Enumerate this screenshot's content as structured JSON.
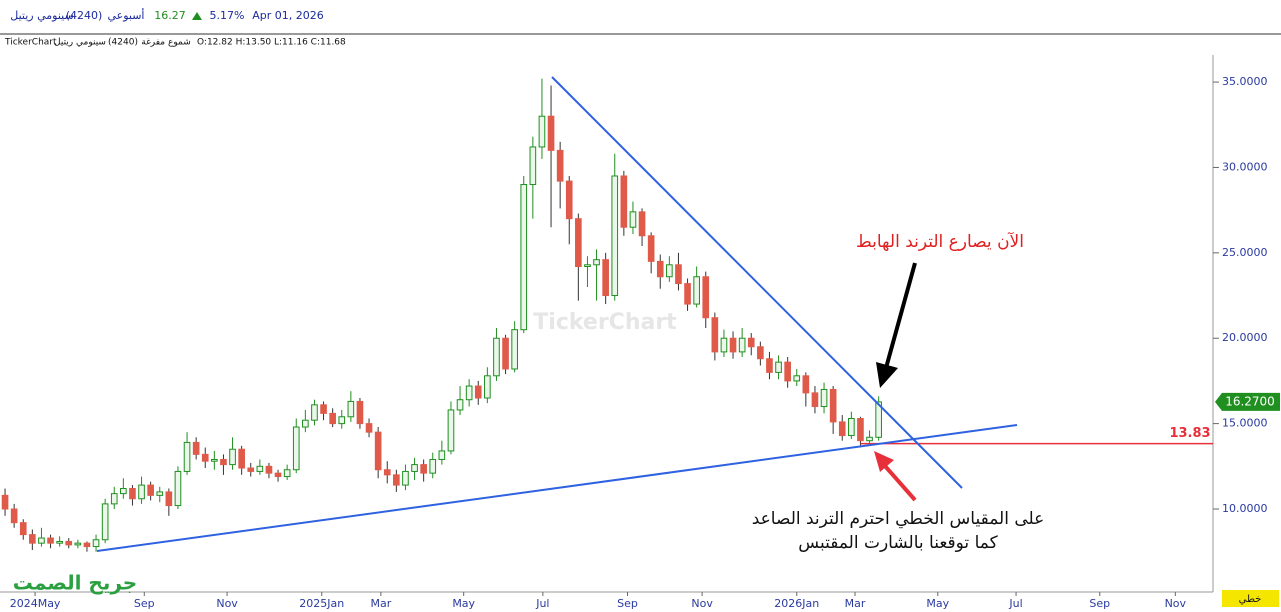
{
  "header": {
    "name": "سينومي ريتيل",
    "code": "(4240)",
    "period": "أسبوعي",
    "price": "16.27",
    "change": "5.17%",
    "date": "Apr 01, 2026",
    "source": "TickerChart",
    "style": "شموع مفرغة",
    "ohlc": "O:12.82  H:13.50  L:11.16  C:11.68"
  },
  "chart_data": {
    "type": "candlestick",
    "open": [
      10.8,
      10.0,
      9.2,
      8.5,
      8.0,
      8.3,
      8.0,
      8.1,
      7.9,
      8.0,
      7.8,
      8.2,
      10.3,
      10.9,
      11.2,
      10.6,
      11.4,
      10.8,
      11.0,
      10.2,
      12.2,
      13.9,
      13.2,
      12.8,
      12.9,
      12.6,
      13.5,
      12.4,
      12.2,
      12.5,
      12.1,
      11.9,
      12.3,
      14.8,
      15.2,
      16.1,
      15.6,
      15.0,
      15.4,
      16.3,
      15.0,
      14.5,
      12.3,
      12.0,
      11.4,
      12.2,
      12.6,
      12.1,
      12.9,
      13.4,
      15.8,
      16.4,
      17.2,
      16.5,
      17.8,
      20.0,
      18.2,
      20.5,
      29.0,
      31.2,
      33.0,
      31.0,
      29.2,
      27.0,
      24.2,
      24.3,
      24.6,
      22.5,
      29.5,
      26.5,
      27.4,
      26.0,
      24.5,
      23.6,
      24.3,
      23.2,
      22.0,
      23.6,
      21.2,
      19.2,
      20.0,
      19.2,
      20.0,
      19.5,
      18.8,
      18.0,
      18.6,
      17.5,
      17.8,
      16.8,
      16.0,
      17.0,
      15.1,
      14.3,
      15.3,
      14.0,
      14.2
    ],
    "high": [
      11.2,
      10.3,
      9.4,
      8.8,
      8.9,
      8.5,
      8.4,
      8.3,
      8.2,
      8.1,
      8.5,
      10.6,
      11.3,
      11.8,
      11.4,
      11.9,
      11.6,
      11.3,
      11.2,
      12.5,
      14.5,
      14.2,
      13.6,
      13.4,
      13.2,
      14.2,
      13.7,
      12.7,
      12.9,
      12.7,
      12.3,
      12.6,
      15.3,
      15.8,
      16.4,
      16.3,
      15.9,
      15.8,
      16.9,
      16.5,
      15.3,
      14.8,
      12.8,
      12.3,
      12.6,
      13.0,
      12.9,
      13.3,
      14.0,
      16.3,
      17.2,
      17.6,
      17.5,
      18.3,
      20.6,
      20.2,
      21.0,
      29.5,
      31.8,
      35.2,
      34.8,
      31.5,
      29.5,
      27.3,
      24.8,
      25.2,
      25.0,
      30.8,
      29.8,
      28.0,
      27.6,
      26.2,
      24.9,
      24.8,
      25.0,
      23.5,
      24.2,
      23.9,
      21.5,
      20.5,
      20.4,
      20.6,
      20.3,
      19.8,
      19.2,
      19.0,
      18.9,
      18.2,
      18.0,
      17.2,
      17.4,
      17.2,
      15.5,
      15.7,
      15.4,
      14.6,
      16.6
    ],
    "low": [
      9.6,
      8.9,
      8.2,
      7.6,
      7.8,
      7.7,
      7.8,
      7.7,
      7.7,
      7.5,
      7.5,
      8.0,
      10.0,
      10.6,
      10.2,
      10.3,
      10.5,
      10.4,
      9.6,
      10.0,
      12.0,
      12.9,
      12.4,
      12.3,
      12.0,
      12.3,
      12.0,
      11.9,
      12.0,
      11.8,
      11.6,
      11.7,
      12.1,
      14.5,
      14.9,
      15.2,
      14.8,
      14.7,
      15.1,
      14.7,
      14.2,
      11.8,
      11.5,
      11.0,
      11.1,
      11.7,
      11.6,
      11.8,
      12.6,
      13.2,
      15.5,
      16.0,
      16.1,
      16.2,
      17.5,
      17.9,
      18.0,
      20.3,
      27.0,
      30.5,
      26.5,
      27.6,
      25.5,
      22.2,
      23.0,
      22.2,
      22.0,
      22.2,
      26.0,
      26.1,
      25.4,
      23.8,
      22.9,
      23.3,
      22.8,
      21.6,
      21.8,
      20.6,
      18.7,
      18.9,
      18.8,
      18.9,
      19.0,
      18.4,
      17.6,
      17.6,
      17.1,
      17.2,
      16.0,
      15.6,
      15.6,
      14.4,
      14.0,
      14.1,
      13.6,
      13.8,
      14.0
    ],
    "close": [
      10.0,
      9.2,
      8.5,
      8.0,
      8.3,
      8.0,
      8.1,
      7.9,
      8.0,
      7.8,
      8.2,
      10.3,
      10.9,
      11.2,
      10.6,
      11.4,
      10.8,
      11.0,
      10.2,
      12.2,
      13.9,
      13.2,
      12.8,
      12.9,
      12.6,
      13.5,
      12.4,
      12.2,
      12.5,
      12.1,
      11.9,
      12.3,
      14.8,
      15.2,
      16.1,
      15.6,
      15.0,
      15.4,
      16.3,
      15.0,
      14.5,
      12.3,
      12.0,
      11.4,
      12.2,
      12.6,
      12.1,
      12.9,
      13.4,
      15.8,
      16.4,
      17.2,
      16.5,
      17.8,
      20.0,
      18.2,
      20.5,
      29.0,
      31.2,
      33.0,
      31.0,
      29.2,
      27.0,
      24.2,
      24.3,
      24.6,
      22.5,
      29.5,
      26.5,
      27.4,
      26.0,
      24.5,
      23.6,
      24.3,
      23.2,
      22.0,
      23.6,
      21.2,
      19.2,
      20.0,
      19.2,
      20.0,
      19.5,
      18.8,
      18.0,
      18.6,
      17.5,
      17.8,
      16.8,
      16.0,
      17.0,
      15.1,
      14.3,
      15.3,
      14.0,
      14.2,
      16.27
    ],
    "up_color": "#1f8f1f",
    "down_color": "#e05a4a",
    "xlim": [
      -0.5,
      132.5
    ],
    "xticks": [
      {
        "value": 3.3,
        "label": "2024May"
      },
      {
        "value": 15.3,
        "label": "Sep"
      },
      {
        "value": 24.4,
        "label": "Nov"
      },
      {
        "value": 34.8,
        "label": "2025Jan"
      },
      {
        "value": 41.3,
        "label": "Mar"
      },
      {
        "value": 50.4,
        "label": "May"
      },
      {
        "value": 59.1,
        "label": "Jul"
      },
      {
        "value": 68.4,
        "label": "Sep"
      },
      {
        "value": 76.6,
        "label": "Nov"
      },
      {
        "value": 87,
        "label": "2026Jan"
      },
      {
        "value": 93.4,
        "label": "Mar"
      },
      {
        "value": 102.5,
        "label": "May"
      },
      {
        "value": 111.1,
        "label": "Jul"
      },
      {
        "value": 120.3,
        "label": "Sep"
      },
      {
        "value": 128.6,
        "label": "Nov"
      }
    ],
    "ylim": [
      5.14,
      37.58
    ],
    "yticks": [
      {
        "value": 10,
        "label": "10.0000"
      },
      {
        "value": 15,
        "label": "15.0000"
      },
      {
        "value": 20,
        "label": "20.0000"
      },
      {
        "value": 25,
        "label": "25.0000"
      },
      {
        "value": 30,
        "label": "30.0000"
      },
      {
        "value": 35,
        "label": "35.0000"
      }
    ],
    "last_price": {
      "value": 16.27,
      "label": "16.2700"
    },
    "support_level": 13.83,
    "annotations": [
      "الآن يصارع الترند الهابط",
      "على المقياس الخطي احترم الترند الصاعد",
      "كما توقعنا بالشارت المقتبس"
    ],
    "watermark": "TickerChart",
    "signature": "جريح الصمت",
    "scale": "خطي"
  }
}
